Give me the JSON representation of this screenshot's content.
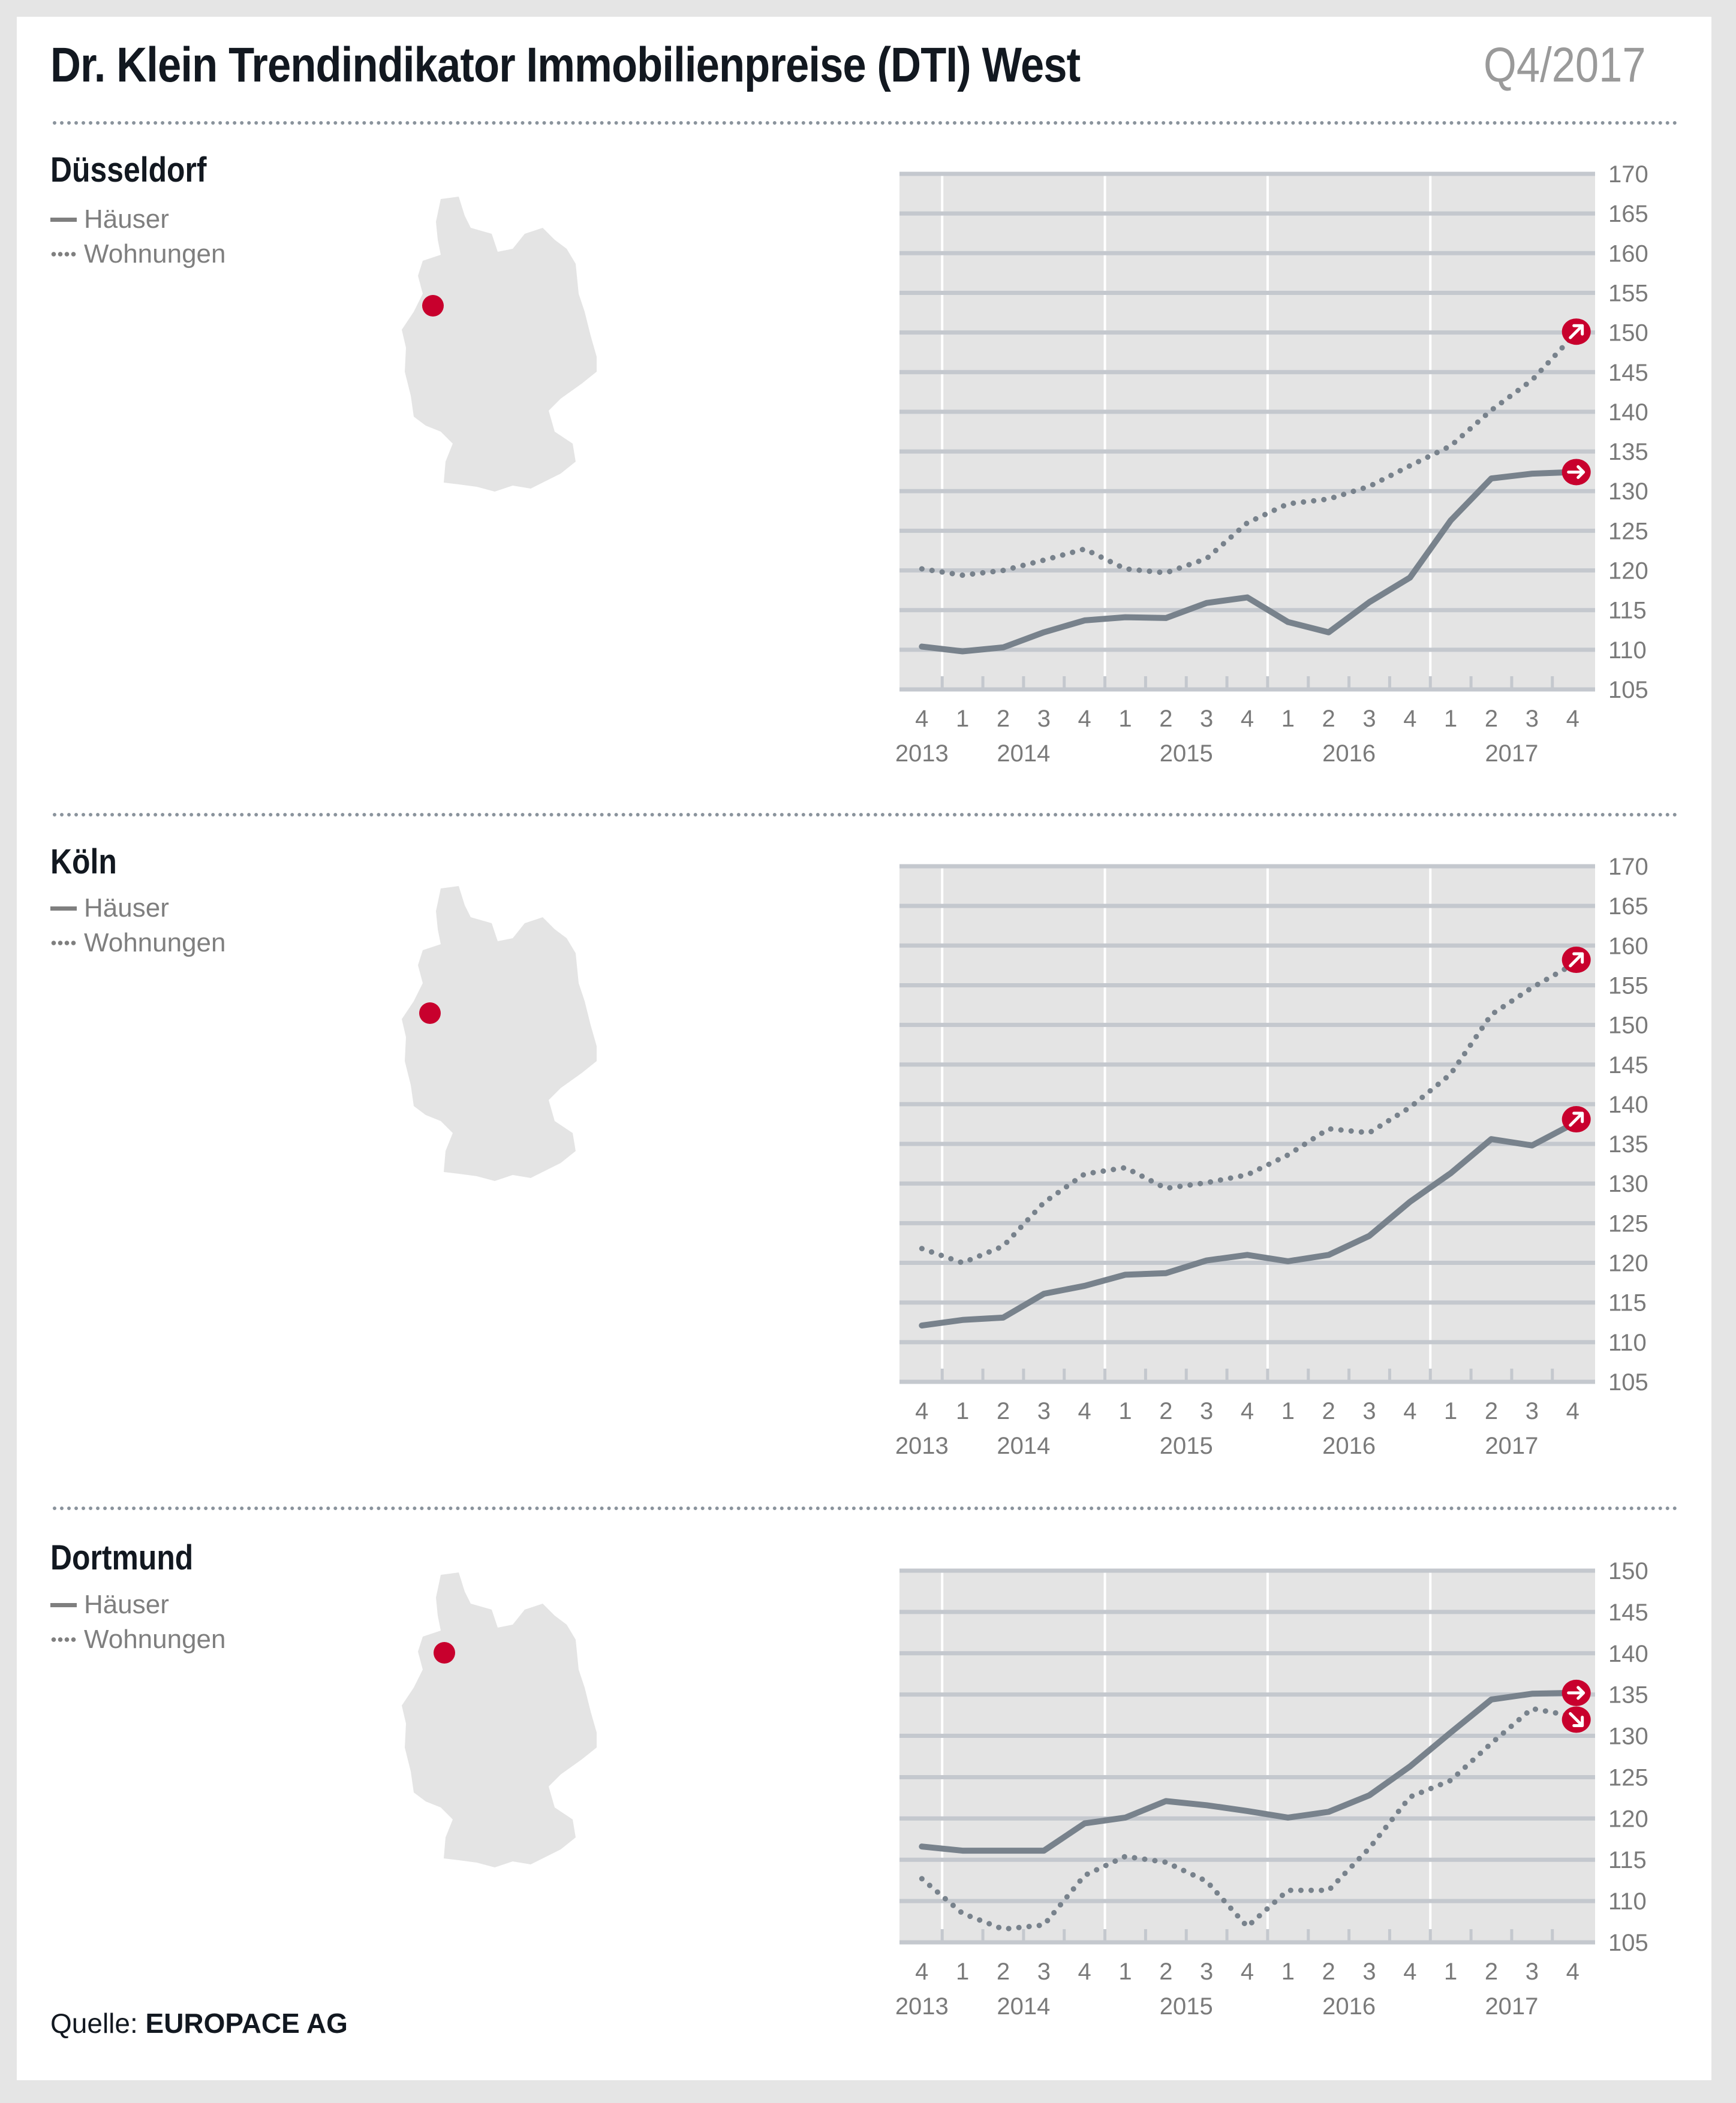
{
  "header": {
    "title": "Dr. Klein Trendindikator Immobilienpreise (DTI) West",
    "period": "Q4/2017"
  },
  "legend": {
    "houses": "Häuser",
    "apartments": "Wohnungen"
  },
  "source": {
    "label": "Quelle:",
    "name": "EUROPACE AG"
  },
  "colors": {
    "line": "#78828c",
    "plot_bg": "#e4e4e4",
    "grid": "#c4c8ce",
    "accent": "#c8002d",
    "axis_text": "#7a7a7a"
  },
  "sections": [
    {
      "city": "Düsseldorf",
      "map_marker": "dusseldorf"
    },
    {
      "city": "Köln",
      "map_marker": "koeln"
    },
    {
      "city": "Dortmund",
      "map_marker": "dortmund"
    }
  ],
  "chart_data": [
    {
      "type": "line",
      "title": "Düsseldorf",
      "x_quarters": [
        "4",
        "1",
        "2",
        "3",
        "4",
        "1",
        "2",
        "3",
        "4",
        "1",
        "2",
        "3",
        "4",
        "1",
        "2",
        "3",
        "4"
      ],
      "x_years": [
        {
          "label": "2013",
          "index": 0
        },
        {
          "label": "2014",
          "index": 2.5
        },
        {
          "label": "2015",
          "index": 6.5
        },
        {
          "label": "2016",
          "index": 10.5
        },
        {
          "label": "2017",
          "index": 14.5
        }
      ],
      "ylim": [
        105,
        170
      ],
      "yticks": [
        105,
        110,
        115,
        120,
        125,
        130,
        135,
        140,
        145,
        150,
        155,
        160,
        165,
        170
      ],
      "series": [
        {
          "name": "Häuser",
          "style": "solid",
          "trend": "right",
          "values": [
            110.4,
            109.8,
            110.3,
            112.2,
            113.7,
            114.1,
            114.0,
            115.9,
            116.6,
            113.5,
            112.2,
            116.0,
            119.1,
            126.3,
            131.6,
            132.2,
            132.4
          ]
        },
        {
          "name": "Wohnungen",
          "style": "dotted",
          "trend": "up-right",
          "values": [
            120.2,
            119.4,
            120.0,
            121.3,
            122.7,
            120.2,
            119.7,
            121.5,
            126.0,
            128.4,
            129.0,
            130.6,
            133.2,
            135.7,
            140.2,
            144.0,
            149.5
          ]
        }
      ]
    },
    {
      "type": "line",
      "title": "Köln",
      "x_quarters": [
        "4",
        "1",
        "2",
        "3",
        "4",
        "1",
        "2",
        "3",
        "4",
        "1",
        "2",
        "3",
        "4",
        "1",
        "2",
        "3",
        "4"
      ],
      "x_years": [
        {
          "label": "2013",
          "index": 0
        },
        {
          "label": "2014",
          "index": 2.5
        },
        {
          "label": "2015",
          "index": 6.5
        },
        {
          "label": "2016",
          "index": 10.5
        },
        {
          "label": "2017",
          "index": 14.5
        }
      ],
      "ylim": [
        105,
        170
      ],
      "yticks": [
        105,
        110,
        115,
        120,
        125,
        130,
        135,
        140,
        145,
        150,
        155,
        160,
        165,
        170
      ],
      "series": [
        {
          "name": "Häuser",
          "style": "solid",
          "trend": "up-right",
          "values": [
            112.1,
            112.8,
            113.1,
            116.1,
            117.1,
            118.5,
            118.7,
            120.3,
            121.0,
            120.2,
            121.0,
            123.4,
            127.7,
            131.3,
            135.6,
            134.8,
            137.5
          ]
        },
        {
          "name": "Wohnungen",
          "style": "dotted",
          "trend": "up-right",
          "values": [
            121.8,
            120.0,
            122.1,
            127.6,
            131.2,
            132.0,
            129.4,
            130.1,
            131.1,
            133.6,
            136.9,
            136.4,
            139.6,
            143.8,
            151.3,
            154.7,
            157.6
          ]
        }
      ]
    },
    {
      "type": "line",
      "title": "Dortmund",
      "x_quarters": [
        "4",
        "1",
        "2",
        "3",
        "4",
        "1",
        "2",
        "3",
        "4",
        "1",
        "2",
        "3",
        "4",
        "1",
        "2",
        "3",
        "4"
      ],
      "x_years": [
        {
          "label": "2013",
          "index": 0
        },
        {
          "label": "2014",
          "index": 2.5
        },
        {
          "label": "2015",
          "index": 6.5
        },
        {
          "label": "2016",
          "index": 10.5
        },
        {
          "label": "2017",
          "index": 14.5
        }
      ],
      "ylim": [
        105,
        150
      ],
      "yticks": [
        105,
        110,
        115,
        120,
        125,
        130,
        135,
        140,
        145,
        150
      ],
      "series": [
        {
          "name": "Häuser",
          "style": "solid",
          "trend": "right",
          "values": [
            116.6,
            116.1,
            116.1,
            116.1,
            119.4,
            120.1,
            122.1,
            121.6,
            120.9,
            120.1,
            120.8,
            122.8,
            126.3,
            130.4,
            134.4,
            135.1,
            135.2
          ]
        },
        {
          "name": "Wohnungen",
          "style": "dotted",
          "trend": "down-right",
          "values": [
            112.7,
            108.5,
            106.6,
            107.1,
            113.1,
            115.4,
            114.7,
            112.4,
            106.9,
            111.3,
            111.3,
            116.4,
            122.6,
            124.6,
            129.1,
            133.3,
            132.4
          ]
        }
      ]
    }
  ]
}
